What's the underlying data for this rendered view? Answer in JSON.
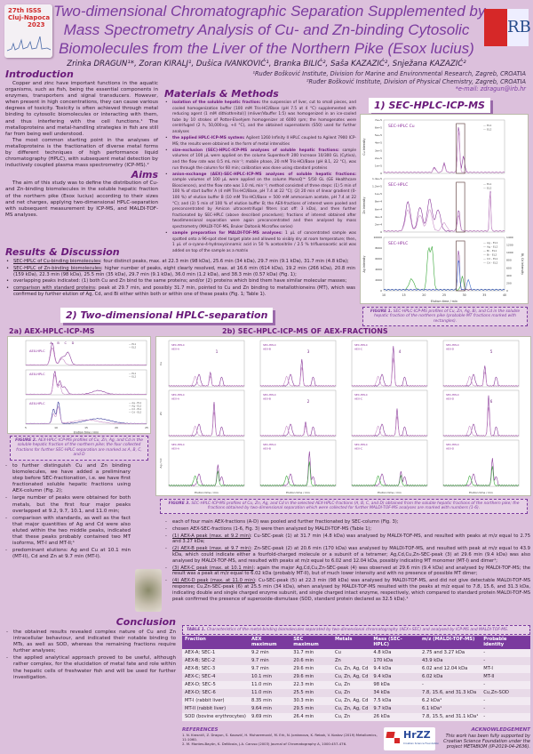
{
  "conference_logo": {
    "line1": "27th ISSS",
    "line2": "Cluj-Napoca",
    "line3": "2023"
  },
  "institute_logo": "RB",
  "title": [
    "Two-dimensional Chromatographic Separation Supplemented by",
    "Mass Spectrometry Analysis of Cu- and Zn-binding Cytosolic",
    "Biomolecules from the Liver of the Northern Pike (Esox lucius)"
  ],
  "authors": "Zrinka DRAGUN¹*, Zoran KIRALJ¹, Dušica IVANKOVIĆ¹, Branka BILIĆ², Saša KAZAZIĆ², Snježana KAZAZIĆ²",
  "affiliations": [
    "¹Ruđer Bošković Institute, Division for Marine and Environmental Research, Zagreb, CROATIA",
    "²Ruđer Bošković Institute, Division of Physical Chemistry, Zagreb, CROATIA"
  ],
  "email": "*e-mail: zdragun@irb.hr",
  "introduction": {
    "heading": "Introduction",
    "paragraphs": [
      "Copper and zinc have important functions in the aquatic organisms, such as fish, being the essential components in enzymes, transporters and signal transducers. However, when present in high concentrations, they can cause various degrees of toxicity. Toxicity is often achieved through metal binding to cytosolic biomolecules or interacting with them, and thus interfering with the cell functions.¹ The metalloproteins and metal-handling strategies in fish are still far from being well understood.",
      "The most common starting point in the analyses of metalloproteins is the fractionation of diverse metal forms by different techniques of high performance liquid chromatography (HPLC), with subsequent metal detection by inductively coupled plasma mass spectrometry (ICP-MS).²"
    ]
  },
  "aims": {
    "heading": "Aims",
    "text": "The aim of this study was to define the distribution of Cu- and Zn-binding biomolecules in the soluble hepatic fraction of the northern pike (Esox lucius) according to their sizes and net charges, applying two-dimensional HPLC-separation with subsequent measurement by ICP-MS, and MALDI-TOF-MS analyses."
  },
  "methods": {
    "heading": "Materials & Methods",
    "items": [
      {
        "label": "isolation of the soluble hepatic fraction:",
        "text": " the suspension of liver, cut to small pieces, and cooled homogenization buffer [100 mM Tris-HCl/Base (pH 7.5 at 4 °C) supplemented with reducing agent (1 mM dithiothreitol)] (mliver/Vbuffer 1:5) was homogenized in an ice-cooled tube by 10 strokes of Potter-Elvehjem homogenizer at 6000 rpm; the homogenates were centrifuged (2 h, 50,000×g, +4 °C), and the obtained supernatants (S50) used for further analyses"
      },
      {
        "label": "the applied HPLC-ICP-MS system:",
        "text": " Agilent 1260 Infinity II HPLC coupled to Agilent 7900 ICP-MS; the results were obtained in the form of metal intensities"
      },
      {
        "label": "size-exclusion (SEC)-HPLC-ICP-MS analyses of soluble hepatic fractions:",
        "text": " sample volumes of 100 μL were applied on the column Superdex® 200 Increase 10/300 GL (Cytiva), and the flow rate was 0.5 mL min⁻¹; mobile phase, 20 mM Tris-HCl/Base (pH 8.1, 22 °C), was run through the column for 60 min; calibration was done using standard proteins"
      },
      {
        "label": "anion-exchange (AEX)-SEC-HPLC-ICP-MS analyses of soluble hepatic fractions:",
        "text": " sample volumes of 100 μL were applied on the column MonoQ™ 5/50 GL (GE Healthcare Biosciences), and the flow rate was 1.0 mL min⁻¹; method consisted of three steps: (1) 5 min of 100 % of start buffer A (4 mM Tris-HCl/Base, pH 7.4 at 22 °C); (2) 20 min of linear gradient (0-100 %) of elution buffer B (10 mM Tris-HCl/Base + 500 mM ammonium acetate, pH 7.4 at 22 °C); and (3) 5 min of 100 % of elution buffer B; the AEX-fractions of interest were pooled and preconcentrated by Amicon ultracentrifugal filters (cut off: 3 kDa), and then further fractionated by SEC-HPLC (above described procedure); fractions of interest obtained after twodimensional separation were again preconcentrated and then analysed by mass spectrometry (MALDI-TOF-MS, Bruker Daltonik Microflex series)"
      },
      {
        "label": "sample preparation for MALDI-TOF-MS analyses:",
        "text": " 1 μL of concentrated sample was spotted onto a 96-spot steel target plate and allowed to visibly dry at room temperature; then, 1 μL of α-cyano-4-hydroxycinnamic acid in 50 % acetonitrile / 2.5 % trifluoroacetic acid was added on top of the sample as a matrix"
      }
    ]
  },
  "results": {
    "heading": "Results & Discussion",
    "items": [
      {
        "label": "SEC-HPLC of Cu-binding biomolecules",
        "text": ": four distinct peaks, max. at 22.3 min (98 kDa), 25.6 min (34 kDa), 29.7 min (9.1 kDa), 31.7 min (4.8 kDa);"
      },
      {
        "label": "SEC-HPLC of Zn-binding biomolecules",
        "text": ": higher number of peaks, eight clearly resolved, max. at 16.6 min (614 kDa), 19.2 min (266 kDa), 20.8 min (159 kDa), 22.3 min (98 kDa), 25.5 min (35 kDa), 29.7 min (9.1 kDa), 36.0 min (1.2 kDa), and 38.3 min (0.57 kDa) (Fig. 1);"
      },
      {
        "label": "",
        "text": "overlapping peaks indicated: (1) both Cu and Zn bind to the same proteins; and/or (2) proteins which bind them have similar molecular masses;"
      },
      {
        "label": "comparison with standard proteins",
        "text": ": peak at 29.7 min, and possibly 31.7 min, pointed to Cu and Zn binding to metallothioneins (MT), which was confirmed by further elution of Ag, Cd, and Bi either within both or within one of these peaks (Fig. 1; Table 1)."
      }
    ]
  },
  "section1": {
    "title": "1) SEC-HPLC-ICP-MS",
    "panels": [
      {
        "label": "SEC-HPLC Cu",
        "ylabel": "Cu Intensity",
        "legend": [
          "EL1",
          "EL2"
        ],
        "yticks": [
          "0",
          "1e+5",
          "2e+5",
          "3e+5",
          "4e+5",
          "5e+5",
          "6e+5",
          "7e+5"
        ]
      },
      {
        "label": "SEC-HPLC",
        "ylabel": "Zn Intensity",
        "legend": [
          "EL1",
          "EL2"
        ],
        "yticks": [
          "0",
          "2e+4",
          "4e+4",
          "6e+4",
          "8e+4",
          "1e+5",
          "1.2e+5",
          "1.4e+5"
        ]
      },
      {
        "label": "SEC-HPLC",
        "ylabel": "Ag Intensity",
        "ylabel2": "Bi, Cd Intensity",
        "legend": [
          "Ag - EL1",
          "Ag - EL2",
          "Bi - EL1",
          "Bi - EL2",
          "Cd - EL1",
          "Cd - EL2"
        ],
        "yticks": [
          "0",
          "2000",
          "4000",
          "6000",
          "8000",
          "10000"
        ],
        "yticks2": [
          "0",
          "200",
          "400",
          "600",
          "800",
          "1000",
          "1200",
          "1400"
        ]
      }
    ],
    "xticks": [
      "10",
      "15",
      "20",
      "25",
      "30",
      "35",
      "40"
    ],
    "xlabel": "Elution time / min",
    "caption_label": "FIGURE 1.",
    "caption": " SEC-HPLC-ICP-MS profiles of Cu, Zn, Ag, Bi, and Cd in the soluble hepatic fraction of the northern pike (probable MT fractions marked with rectangles)."
  },
  "section2": {
    "title": "2) Two-dimensional HPLC-separation",
    "fig2": {
      "heading": "2a) AEX-HPLC-ICP-MS",
      "panels": [
        {
          "label": "AEX-HPLC",
          "legend": [
            "EL1",
            "EL2"
          ]
        },
        {
          "label": "AEX-HPLC",
          "legend": [
            "EL1",
            "EL2"
          ]
        },
        {
          "label": "AEX-HPLC",
          "legend": [
            "Ag - EL1",
            "Ag - EL2",
            "Cd - EL1",
            "Cd - EL2"
          ]
        }
      ],
      "markers": [
        "A",
        "B",
        "C",
        "D"
      ],
      "xticks": [
        "5",
        "10",
        "15",
        "20",
        "25"
      ],
      "xlabel": "Elution time / min",
      "caption_label": "FIGURE 2.",
      "caption": " AEX-HPLC-ICP-MS profiles of Cu, Zn, Ag, and Cd in the soluble hepatic fraction of the northern pike; the four collected fractions for further SEC-HPLC separation are marked as A, B, C, and D"
    },
    "fig3": {
      "heading": "2b) SEC-HPLC-ICP-MS OF AEX-FRACTIONS",
      "columns": [
        "AEX-A",
        "AEX-B",
        "AEX-C",
        "AEX-D"
      ],
      "rows": [
        "Cu",
        "Zn",
        "Ag / Cd"
      ],
      "numbers": [
        "1",
        "2",
        "3",
        "4",
        "5",
        "6"
      ],
      "xlabel": "Elution time / min",
      "caption_label": "FIGURE 3.",
      "caption": " SEC-HPLC-ICP-MS profiles of Cu, Zn, Ag, and Cd in the selected AEX-HPLC-fractions (A, B, C, and D) obtained from the soluble hepatic fractions of the northern pike; the fractions obtained by two-dimensional separation which were collected for further MALDI-TOF-MS analyses are marked with numbers (1-6)."
    }
  },
  "left_bullets": [
    "to further distinguish Cu and Zn binding biomolecules, we have added a preliminary step before SEC-fractionation, i.e. we have first fractionated soluble hepatic fractions using AEX-column (Fig. 2);",
    "large number of peaks were obtained for both metals, but the first four major peaks overlapped at 9.2, 9.7, 10.1, and 11.0 min;",
    "comparison with standards, as well as the fact that major quantities of Ag and Cd were also eluted within the two middle peaks, indicated that these peaks probably contained two MT isoforms, MT-I and MT-II;¹",
    "predominant elutions: Ag and Cu at 10.1 min (MT-II), Cd and Zn at 9.7 min (MT-I)."
  ],
  "right_bullets": [
    {
      "label": "",
      "text": "each of four main AEX-fractions (A-D) was pooled and further fractionated by SEC-column (Fig. 3);"
    },
    {
      "label": "",
      "text": "chosen AEX-SEC-fractions (1-6, Fig. 3) were then analyzed by MALDI-TOF-MS (Table 1);"
    },
    {
      "label": "(1) AEX-A peak (max. at 9.2 min)",
      "text": ": Cu-SEC-peak (1) at 31.7 min (4.8 kDa) was analysed by MALDI-TOF-MS, and resulted with peaks at m/z equal to 2.75 and 3.27 kDa;"
    },
    {
      "label": "(2) AEX-B peak (max. at 9.7 min)",
      "text": ": Zn-SEC-peak (2) at 20.6 min (170 kDa) was analysed by MALDI-TOF-MS, and resulted with peak at m/z equal to 43.9 kDa, which could indicate either a fourfold-charged molecule or a subunit of a tetramer; Ag,Cd,Cu,Zn-SEC-peak (3) at 29.6 min (9.4 kDa) was also analysed by MALDI-TOF-MS, and resulted with peaks at m/z equal to 6.02 and 12.04 kDa, possibly indicating MT monomer (MT-I) and dimer¹;"
    },
    {
      "label": "(3) AEX-C peak (max. at 10.1 min)",
      "text": ": again the major Ag,Cd,Cu,Zn-SEC-peak (4) was observed at 29.6 min (9.4 kDa) and analysed by MALDI-TOF-MS; the result was a peak at m/z equal to 6.02 kDa (probably MT-II), but of much lower intensity and with no presence of possible MT dimer;"
    },
    {
      "label": "(4) AEX-D peak (max. at 11.0 min)",
      "text": ": Cu-SEC-peak (5) at 22.3 min (98 kDa) was analysed by MALDI-TOF-MS, and did not give detectable MALDI-TOF-MS response; Cu,Zn-SEC-peak (6) at 25.5 min (34 kDa), when analysed by MALDI-TOF-MS resulted with the peaks at m/z equal to 7.8, 15.6, and 31.3 kDa, indicating double and single charged enzyme subunit, and single charged intact enzyme, respectively, which compared to standard protein MALDI-TOF-MS peak confirmed the presence of superoxide-dismutase (SOD, standard protein declared as 32.5 kDa).¹"
    }
  ],
  "conclusion": {
    "heading": "Conclusion",
    "items": [
      "the obtained results revealed complex nature of Cu and Zn intracellular behaviour, and indicated their notable binding to MTs, as well as SOD, whereas the remaining fractions require further analyses;",
      "the applied analytical approach proved to be useful, although rather complex, for the elucidation of metal fate and role within the hepatic cells of freshwater fish and will be used for further investigation."
    ]
  },
  "table": {
    "caption_label": "TABLE 1.",
    "caption": " Characteristics of the metal-binding biomolecules separated by two-dimensional chromatography (AEX+SEC) and analysed by ICP-MS and MALDI-TOF-MS.",
    "headers": [
      "Fraction",
      "AEX maximum",
      "SEC maximum",
      "Metals",
      "Mass (SEC-HPLC)",
      "m/z (MALDI-TOF-MS)",
      "Probable identity"
    ],
    "rows": [
      [
        "AEX-A; SEC-1",
        "9.2 min",
        "31.7 min",
        "Cu",
        "4.8 kDa",
        "2.75 and 3.27 kDa",
        "-"
      ],
      [
        "AEX-B; SEC-2",
        "9.7 min",
        "20.6 min",
        "Zn",
        "170 kDa",
        "43.9 kDa",
        "-"
      ],
      [
        "AEX-B; SEC-3",
        "9.7 min",
        "29.6 min",
        "Cu, Zn, Ag, Cd",
        "9.4 kDa",
        "6.02 and 12.04 kDa",
        "MT-I"
      ],
      [
        "AEX-C; SEC-4",
        "10.1 min",
        "29.6 min",
        "Cu, Zn, Ag, Cd",
        "9.4 kDa",
        "6.02 kDa",
        "MT-II"
      ],
      [
        "AEX-D; SEC-5",
        "11.0 min",
        "22.3 min",
        "Cu, Zn",
        "98 kDa",
        "-",
        "-"
      ],
      [
        "AEX-D; SEC-6",
        "11.0 min",
        "25.5 min",
        "Cu, Zn",
        "34 kDa",
        "7.8, 15.6, and 31.3 kDa",
        "Cu,Zn-SOD"
      ],
      [
        "MT-I (rabbit liver)",
        "8.35 min",
        "30.3 min",
        "Cu, Zn, Ag, Cd",
        "7.5 kDa",
        "6.2 kDa¹",
        "-"
      ],
      [
        "MT-II (rabbit liver)",
        "9.64 min",
        "29.5 min",
        "Cu, Zn, Ag, Cd",
        "9.7 kDa",
        "6.1 kDa¹",
        "-"
      ],
      [
        "SOD (bovine erythrocytes)",
        "9.69 min",
        "26.4 min",
        "Cu, Zn",
        "26 kDa",
        "7.8, 15.5, and 31.1 kDa¹",
        "-"
      ]
    ]
  },
  "references": {
    "heading": "REFERENCES",
    "items": [
      "1. N. Krasnići, Z. Dragun, S. Kazazić, H. Muharemović, M. Erk, N. Jordanova, K. Rebok, V. Kostov (2019) Metallomics, 11:1060.",
      "2. M. Montes-Bayón, K. DeNicola, J.A. Caruso (2003) Journal of Chromatography A, 1000:457-476."
    ]
  },
  "funder_logo": {
    "name": "HrZZ",
    "sub": "Croatian Science Foundation"
  },
  "acknowledgement": {
    "heading": "ACKNOWLEDGEMENT",
    "text": "This work has been fully supported by Croatian Science Foundation under the project METABIOM (IP-2019-04-2636)."
  },
  "colors": {
    "background": "#dcc0dc",
    "title": "#7a3a9e",
    "heading": "#6a1a7a",
    "table_header": "#7a3a9e",
    "trace_el1": "#8a3a9a",
    "trace_el2": "#c890c8",
    "trace_bi": "#3aa83a"
  }
}
